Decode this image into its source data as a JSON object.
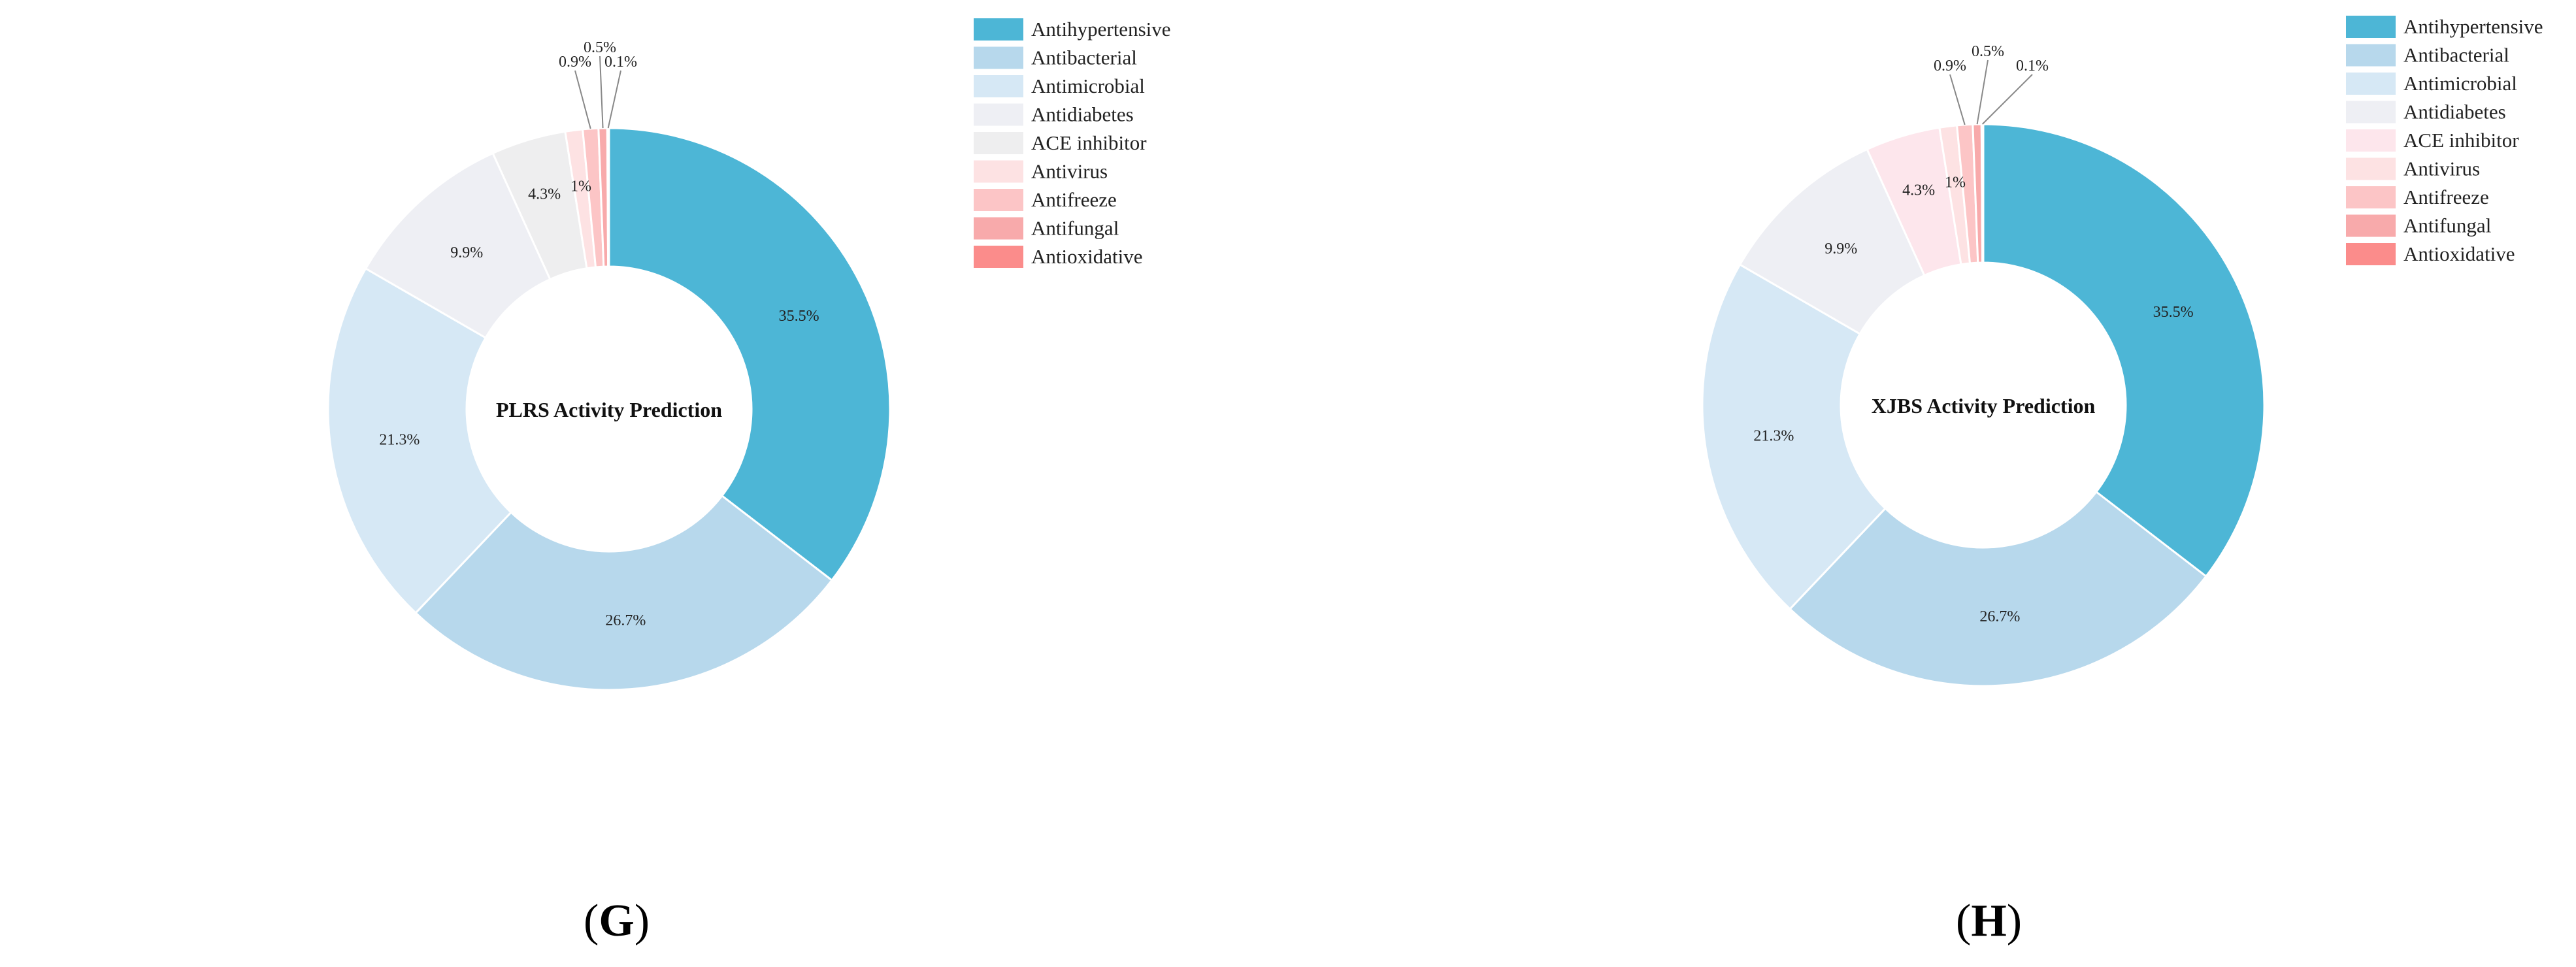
{
  "chart_data": [
    {
      "type": "pie",
      "panel": "G",
      "title": "PLRS Activity Prediction",
      "categories": [
        "Antihypertensive",
        "Antibacterial",
        "Antimicrobial",
        "Antidiabetes",
        "ACE inhibitor",
        "Antivirus",
        "Antifreeze",
        "Antifungal",
        "Antioxidative"
      ],
      "values": [
        35.5,
        26.7,
        21.3,
        9.9,
        4.3,
        1.0,
        0.9,
        0.5,
        0.1
      ],
      "value_labels": [
        "35.5%",
        "26.7%",
        "21.3%",
        "9.9%",
        "4.3%",
        "1%",
        "0.9%",
        "0.5%",
        "0.1%"
      ],
      "colors": [
        "#4db6d6",
        "#b7d8ec",
        "#d6e8f5",
        "#eeeff4",
        "#eeeeef",
        "#fde2e3",
        "#fcc5c6",
        "#f8aaab",
        "#fb8c8b"
      ],
      "legend_position": "right"
    },
    {
      "type": "pie",
      "panel": "H",
      "title": "XJBS Activity Prediction",
      "categories": [
        "Antihypertensive",
        "Antibacterial",
        "Antimicrobial",
        "Antidiabetes",
        "ACE inhibitor",
        "Antivirus",
        "Antifreeze",
        "Antifungal",
        "Antioxidative"
      ],
      "values": [
        35.5,
        26.7,
        21.3,
        9.9,
        4.3,
        1.0,
        0.9,
        0.5,
        0.1
      ],
      "value_labels": [
        "35.5%",
        "26.7%",
        "21.3%",
        "9.9%",
        "4.3%",
        "1%",
        "0.9%",
        "0.5%",
        "0.1%"
      ],
      "colors": [
        "#4db6d6",
        "#b7d8ec",
        "#d6e8f5",
        "#eeeff4",
        "#fde6ec",
        "#fde2e3",
        "#fcc5c6",
        "#f8aaab",
        "#fb8c8b"
      ],
      "legend_position": "right"
    }
  ],
  "panel_labels": {
    "g": {
      "open": "(",
      "letter": "G",
      "close": ")"
    },
    "h": {
      "open": "(",
      "letter": "H",
      "close": ")"
    }
  }
}
